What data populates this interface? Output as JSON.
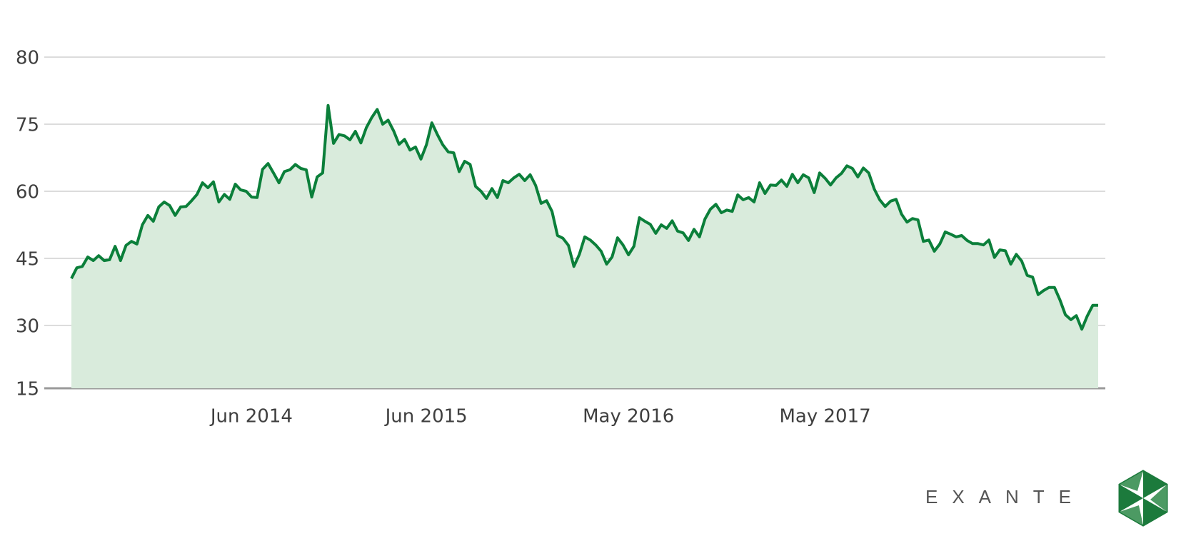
{
  "chart_data": {
    "type": "area",
    "color": "#0b7f3a",
    "fill": "#d9ebdc",
    "grid": true,
    "categories": [
      null,
      null,
      null,
      null,
      null,
      null,
      null,
      null,
      null,
      null,
      null,
      null,
      null,
      null,
      null,
      null,
      null,
      null,
      null,
      null,
      null,
      null,
      null,
      null,
      null,
      null,
      null,
      null,
      null,
      null,
      null,
      null,
      null,
      "Jun 2014",
      null,
      null,
      null,
      null,
      null,
      null,
      null,
      null,
      null,
      null,
      null,
      null,
      null,
      null,
      null,
      null,
      null,
      null,
      null,
      null,
      null,
      null,
      null,
      null,
      null,
      null,
      null,
      null,
      null,
      null,
      null,
      "Jun 2015",
      null,
      null,
      null,
      null,
      null,
      null,
      null,
      null,
      null,
      null,
      null,
      null,
      null,
      null,
      null,
      null,
      null,
      null,
      null,
      null,
      null,
      null,
      null,
      null,
      null,
      null,
      null,
      null,
      null,
      null,
      null,
      null,
      null,
      null,
      null,
      null,
      "May 2016",
      null,
      null,
      null,
      null,
      null,
      null,
      null,
      null,
      null,
      null,
      null,
      null,
      null,
      null,
      null,
      null,
      null,
      null,
      null,
      null,
      null,
      null,
      null,
      null,
      null,
      null,
      null,
      null,
      null,
      null,
      null,
      null,
      null,
      null,
      null,
      "May 2017",
      null,
      null,
      null,
      null,
      null,
      null,
      null,
      null,
      null,
      null,
      null,
      null,
      null,
      null,
      null,
      null,
      null,
      null,
      null,
      null,
      null,
      null,
      null,
      null,
      null,
      null,
      null,
      null,
      null,
      null,
      null,
      null,
      null,
      null,
      null,
      null,
      null,
      null,
      null,
      null,
      null,
      null,
      null,
      null,
      null,
      null,
      null,
      null,
      null,
      null
    ],
    "values": [
      40.5,
      42.9,
      43.2,
      45.3,
      44.5,
      45.6,
      44.5,
      44.7,
      47.7,
      44.5,
      47.9,
      48.8,
      48.2,
      52.5,
      54.6,
      53.3,
      56.5,
      57.6,
      56.8,
      54.6,
      56.5,
      56.6,
      57.9,
      59.3,
      61.9,
      60.8,
      62.1,
      57.6,
      59.3,
      58.2,
      61.6,
      60.3,
      60.0,
      58.7,
      58.6,
      64.9,
      66.2,
      64.1,
      61.9,
      64.4,
      64.8,
      66.0,
      65.1,
      64.8,
      58.7,
      63.2,
      64.1,
      76.4,
      70.7,
      72.7,
      72.4,
      71.5,
      73.4,
      70.8,
      74.2,
      75.5,
      76.1,
      75.0,
      75.3,
      73.5,
      70.5,
      71.6,
      69.2,
      69.9,
      67.2,
      70.4,
      75.1,
      72.7,
      70.4,
      68.8,
      68.6,
      64.4,
      66.7,
      66.0,
      61.1,
      60.0,
      58.4,
      60.6,
      58.6,
      62.4,
      61.9,
      63.0,
      63.8,
      62.4,
      63.7,
      61.3,
      57.3,
      57.9,
      55.5,
      50.1,
      49.5,
      47.9,
      43.2,
      45.9,
      49.8,
      49.1,
      48.0,
      46.6,
      43.7,
      45.3,
      49.6,
      48.0,
      45.8,
      47.7,
      54.1,
      53.3,
      52.6,
      50.6,
      52.5,
      51.7,
      53.4,
      51.1,
      50.7,
      49.0,
      51.5,
      49.8,
      53.8,
      56.0,
      57.1,
      55.2,
      55.8,
      55.5,
      59.2,
      58.1,
      58.6,
      57.6,
      61.9,
      59.5,
      61.4,
      61.3,
      62.5,
      61.1,
      63.8,
      61.9,
      63.7,
      63.0,
      59.7,
      64.1,
      62.9,
      61.4,
      63.0,
      64.0,
      65.7,
      65.1,
      63.2,
      65.2,
      64.1,
      60.5,
      58.1,
      56.6,
      57.8,
      58.2,
      54.9,
      53.1,
      53.9,
      53.6,
      48.8,
      49.1,
      46.6,
      48.2,
      50.9,
      50.4,
      49.8,
      50.1,
      49.0,
      48.3,
      48.3,
      48.0,
      49.1,
      45.2,
      46.9,
      46.7,
      43.7,
      45.9,
      44.4,
      41.2,
      40.8,
      36.9,
      37.8,
      38.5,
      38.5,
      35.7,
      32.4,
      31.3,
      32.2,
      29.1,
      32.1,
      34.5,
      34.5
    ],
    "ylim": [
      15,
      80
    ],
    "yticks": [
      15,
      30,
      45,
      60,
      75,
      80
    ]
  },
  "brand": "EXANTE"
}
